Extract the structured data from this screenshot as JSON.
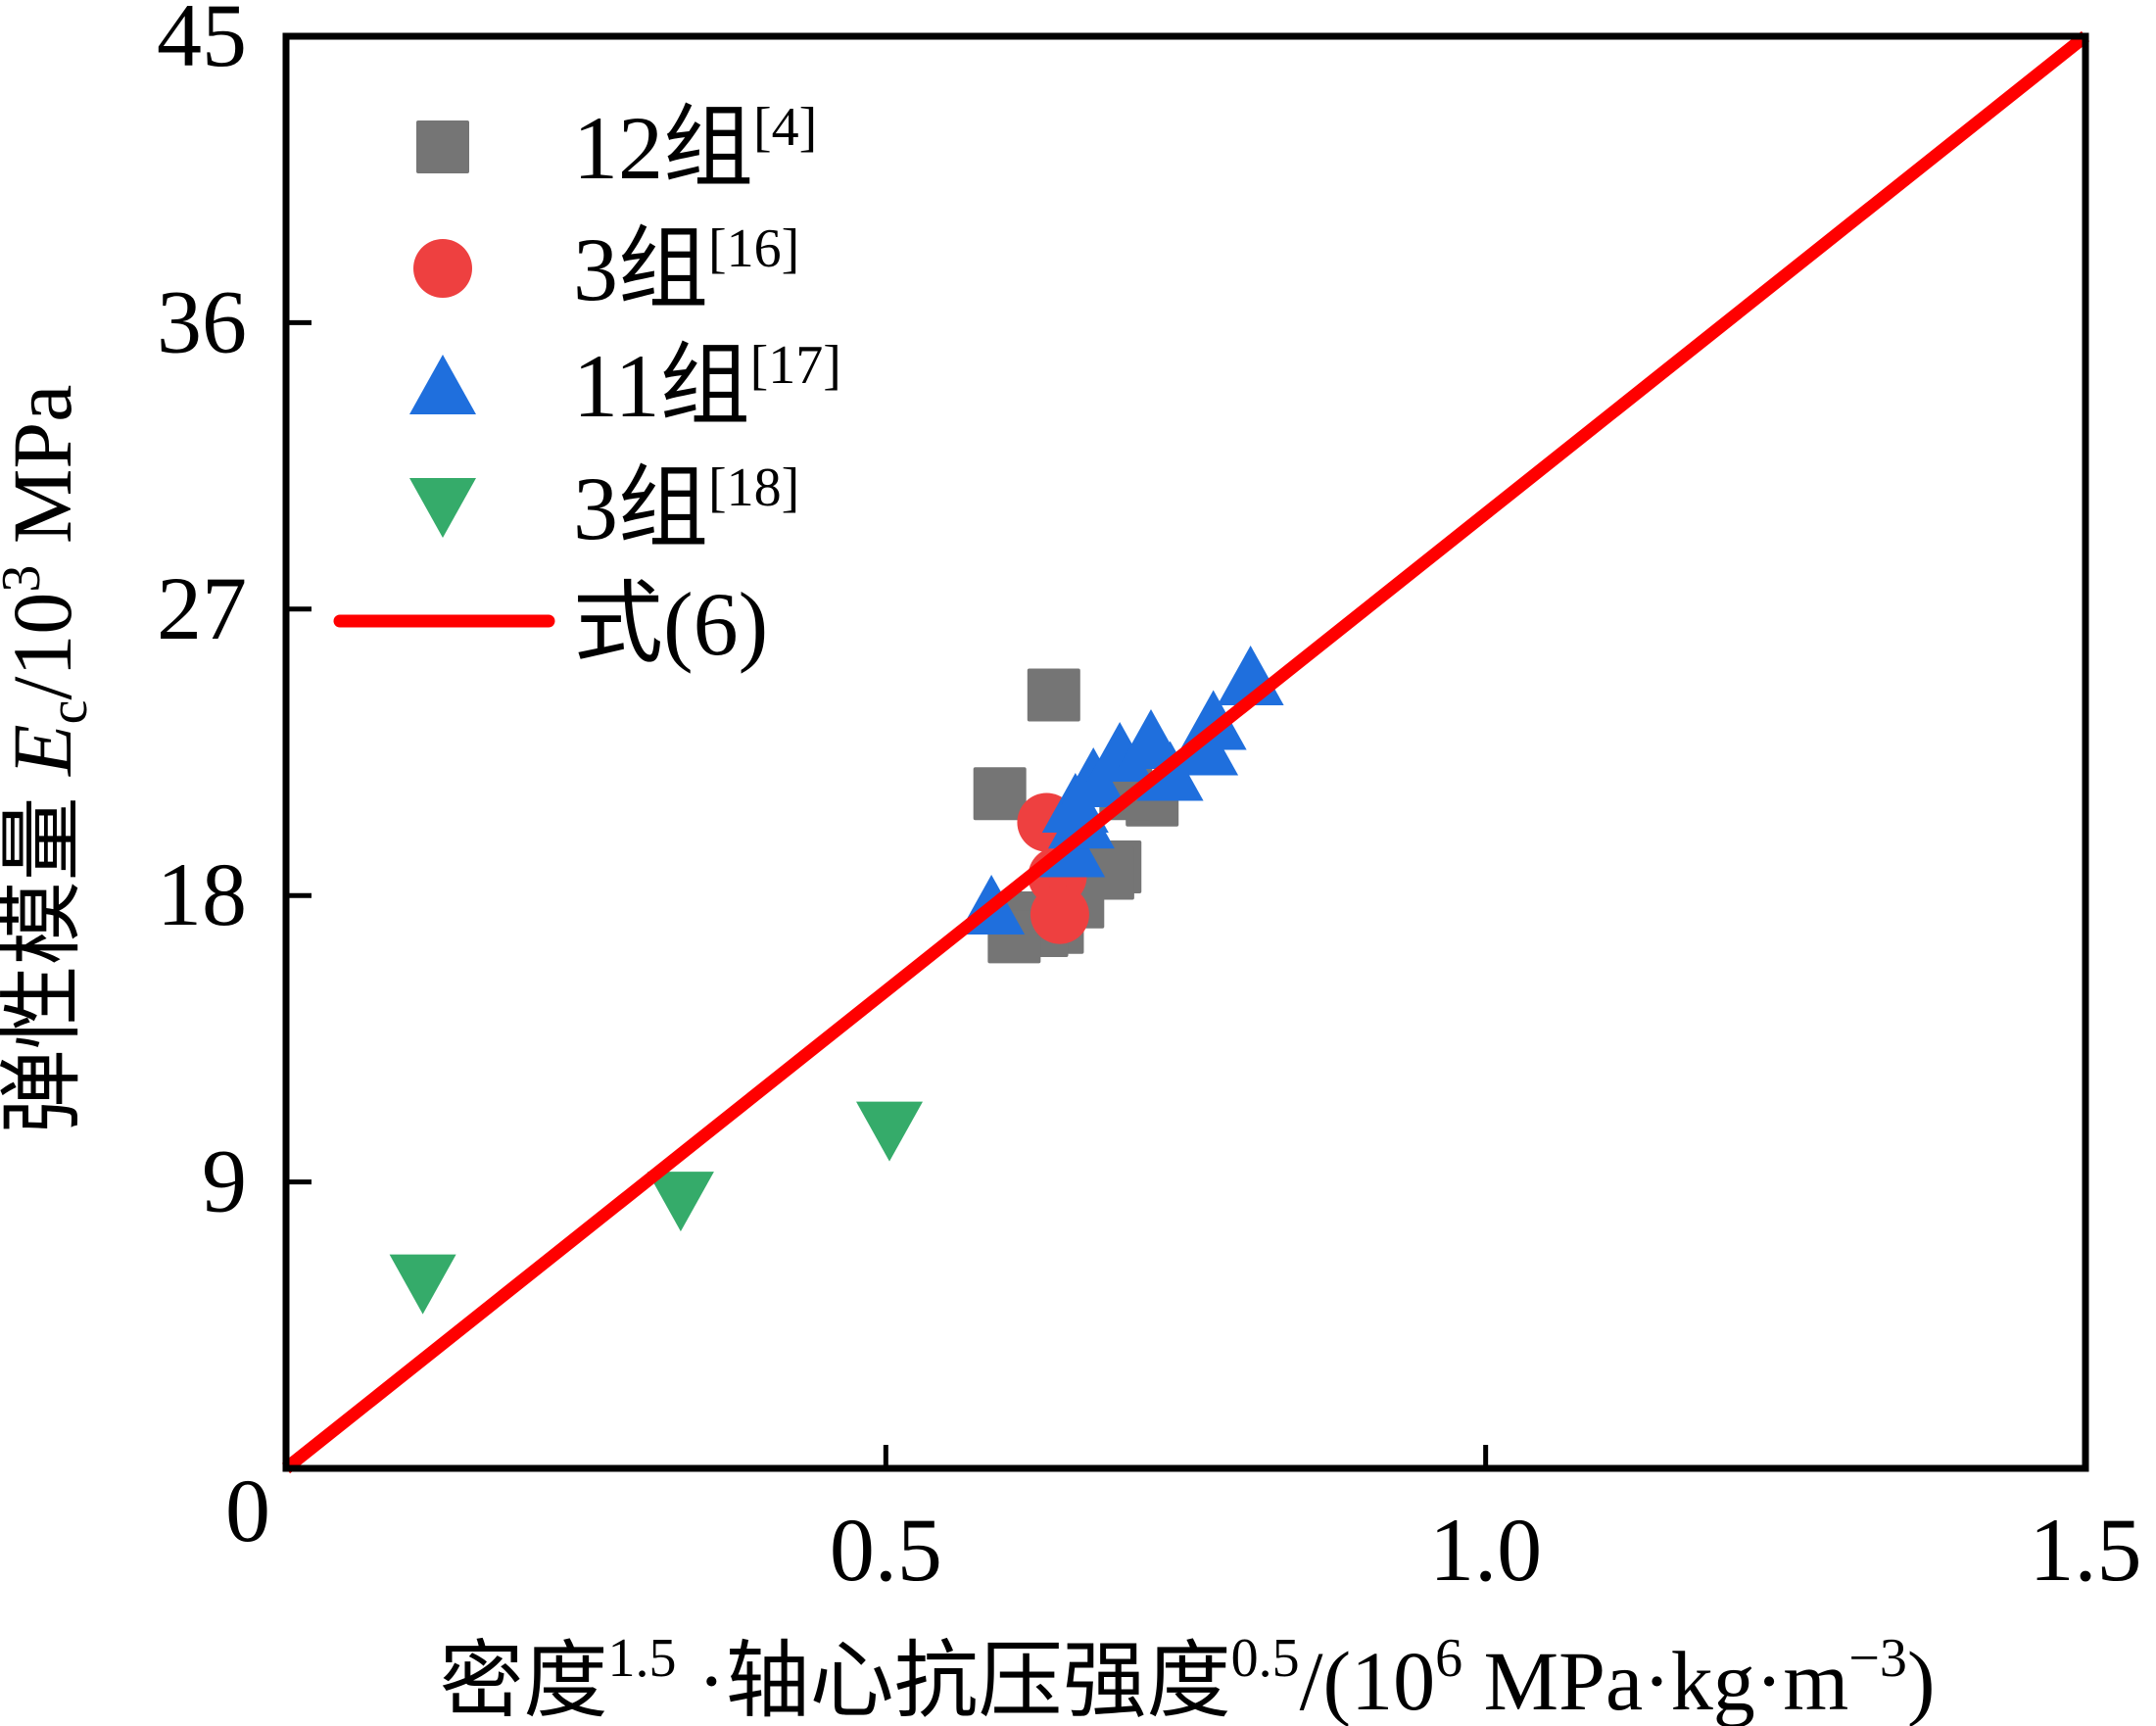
{
  "chart_data": {
    "type": "scatter",
    "title": "",
    "xlabel": {
      "parts": [
        {
          "text": "密度",
          "sup": "1.5"
        },
        {
          "text": " ·轴心抗压强度",
          "sup": "0.5"
        },
        {
          "text": "/(10",
          "sup": "6"
        },
        {
          "text": " MPa·kg·m",
          "sup": "−3"
        },
        {
          "text": ")",
          "sup": ""
        }
      ],
      "full": "密度^1.5 ·轴心抗压强度^0.5/(10^6 MPa·kg·m^-3)"
    },
    "ylabel": {
      "prefix": "弹性模量 ",
      "symbol": "E",
      "subscript": "c",
      "unit_prefix": "/10",
      "unit_sup": "3",
      "unit": " MPa",
      "full": "弹性模量 Ec/10^3 MPa"
    },
    "xlim": [
      0,
      1.5
    ],
    "ylim": [
      0,
      45
    ],
    "xticks": [
      0,
      0.5,
      1.0,
      1.5
    ],
    "xtick_labels": [
      "0",
      "0.5",
      "1.0",
      "1.5"
    ],
    "yticks": [
      9,
      18,
      27,
      36,
      45
    ],
    "ytick_labels": [
      "9",
      "18",
      "27",
      "36",
      "45"
    ],
    "grid": false,
    "legend_position": "top-left",
    "series": [
      {
        "name": "12组",
        "ref": "[4]",
        "marker": "square",
        "color": "#757575",
        "points": [
          [
            0.64,
            24.3
          ],
          [
            0.595,
            21.2
          ],
          [
            0.722,
            21.0
          ],
          [
            0.7,
            21.2
          ],
          [
            0.691,
            18.9
          ],
          [
            0.685,
            18.7
          ],
          [
            0.66,
            17.8
          ],
          [
            0.655,
            18.3
          ],
          [
            0.643,
            17.0
          ],
          [
            0.63,
            16.9
          ],
          [
            0.62,
            17.3
          ],
          [
            0.607,
            16.7
          ]
        ]
      },
      {
        "name": "3组",
        "ref": "[16]",
        "marker": "circle",
        "color": "#ee4040",
        "points": [
          [
            0.634,
            20.3
          ],
          [
            0.643,
            18.6
          ],
          [
            0.645,
            17.4
          ]
        ]
      },
      {
        "name": "11组",
        "ref": "[17]",
        "marker": "triangle-up",
        "color": "#1f6fdd",
        "points": [
          [
            0.588,
            17.7
          ],
          [
            0.655,
            19.5
          ],
          [
            0.658,
            20.9
          ],
          [
            0.663,
            20.4
          ],
          [
            0.673,
            21.7
          ],
          [
            0.695,
            22.5
          ],
          [
            0.721,
            22.9
          ],
          [
            0.737,
            21.9
          ],
          [
            0.766,
            22.7
          ],
          [
            0.773,
            23.5
          ],
          [
            0.804,
            24.9
          ]
        ]
      },
      {
        "name": "3组",
        "ref": "[18]",
        "marker": "triangle-down",
        "color": "#35ab6a",
        "points": [
          [
            0.114,
            5.8
          ],
          [
            0.329,
            8.4
          ],
          [
            0.503,
            10.6
          ]
        ]
      }
    ],
    "lines": [
      {
        "name": "式(6)",
        "color": "#ff0000",
        "equation": "y = 30x",
        "points": [
          [
            0,
            0
          ],
          [
            1.5,
            45
          ]
        ]
      }
    ]
  }
}
